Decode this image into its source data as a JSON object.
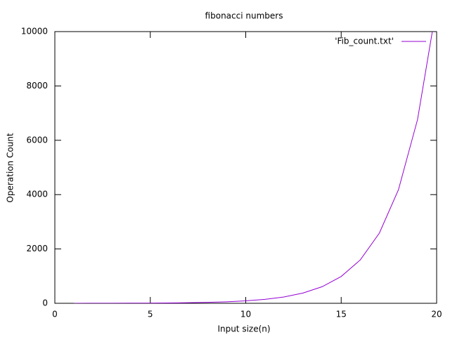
{
  "chart_data": {
    "type": "line",
    "title": "fibonacci numbers",
    "x_label": "Input size(n)",
    "y_label": "Operation Count",
    "x": [
      1,
      2,
      3,
      4,
      5,
      6,
      7,
      8,
      9,
      10,
      11,
      12,
      13,
      14,
      15,
      16,
      17,
      18,
      19,
      20
    ],
    "series": [
      {
        "name": "'Fib_count.txt'",
        "color": "#9400d3",
        "values": [
          1,
          2,
          3,
          5,
          8,
          13,
          21,
          34,
          55,
          89,
          144,
          233,
          377,
          610,
          987,
          1597,
          2584,
          4181,
          6765,
          10946
        ]
      }
    ],
    "xlim": [
      0,
      20
    ],
    "xticks": [
      0,
      5,
      10,
      15,
      20
    ],
    "ylim": [
      0,
      10000
    ],
    "yticks": [
      0,
      2000,
      4000,
      6000,
      8000,
      10000
    ],
    "legend": "top-right"
  }
}
